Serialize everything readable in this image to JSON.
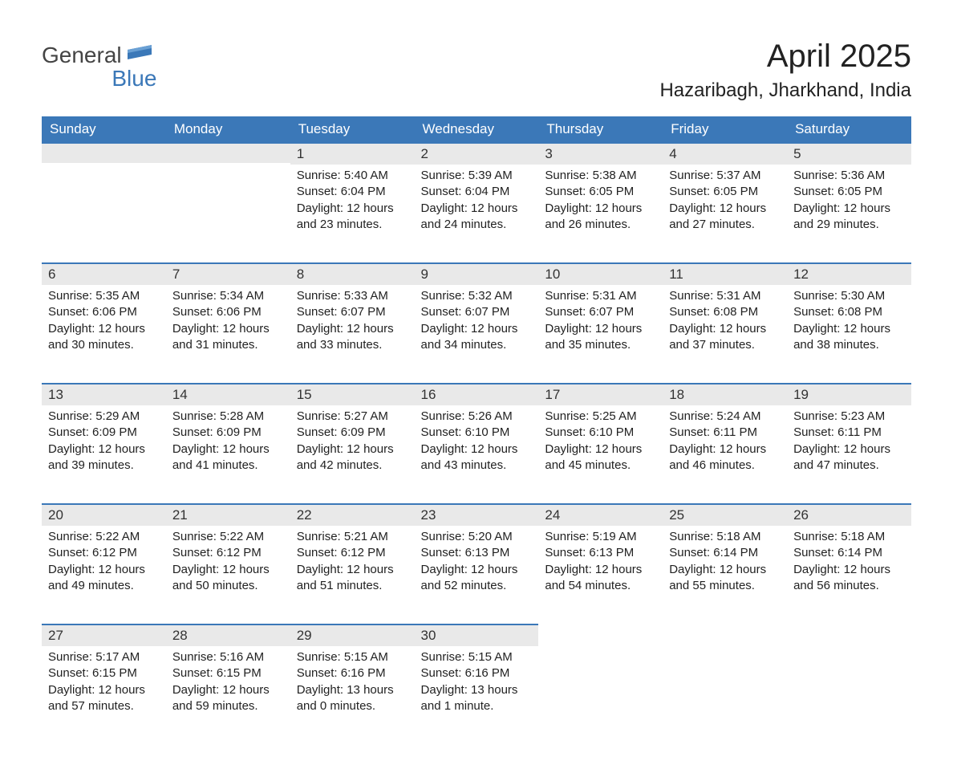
{
  "logo": {
    "line1": "General",
    "line2": "Blue",
    "color_general": "#444444",
    "color_blue": "#3b78b8",
    "flag_color": "#3b78b8"
  },
  "title": "April 2025",
  "location": "Hazaribagh, Jharkhand, India",
  "colors": {
    "header_bg": "#3b78b8",
    "header_text": "#ffffff",
    "day_bar_bg": "#e9e9e9",
    "row_divider": "#3b78b8",
    "body_text": "#222222",
    "background": "#ffffff"
  },
  "fonts": {
    "title_size": 40,
    "location_size": 24,
    "dayhead_size": 17,
    "daynum_size": 17,
    "body_size": 15
  },
  "day_headers": [
    "Sunday",
    "Monday",
    "Tuesday",
    "Wednesday",
    "Thursday",
    "Friday",
    "Saturday"
  ],
  "weeks": [
    [
      {
        "day": "",
        "sunrise": "",
        "sunset": "",
        "daylight": ""
      },
      {
        "day": "",
        "sunrise": "",
        "sunset": "",
        "daylight": ""
      },
      {
        "day": "1",
        "sunrise": "Sunrise: 5:40 AM",
        "sunset": "Sunset: 6:04 PM",
        "daylight": "Daylight: 12 hours and 23 minutes."
      },
      {
        "day": "2",
        "sunrise": "Sunrise: 5:39 AM",
        "sunset": "Sunset: 6:04 PM",
        "daylight": "Daylight: 12 hours and 24 minutes."
      },
      {
        "day": "3",
        "sunrise": "Sunrise: 5:38 AM",
        "sunset": "Sunset: 6:05 PM",
        "daylight": "Daylight: 12 hours and 26 minutes."
      },
      {
        "day": "4",
        "sunrise": "Sunrise: 5:37 AM",
        "sunset": "Sunset: 6:05 PM",
        "daylight": "Daylight: 12 hours and 27 minutes."
      },
      {
        "day": "5",
        "sunrise": "Sunrise: 5:36 AM",
        "sunset": "Sunset: 6:05 PM",
        "daylight": "Daylight: 12 hours and 29 minutes."
      }
    ],
    [
      {
        "day": "6",
        "sunrise": "Sunrise: 5:35 AM",
        "sunset": "Sunset: 6:06 PM",
        "daylight": "Daylight: 12 hours and 30 minutes."
      },
      {
        "day": "7",
        "sunrise": "Sunrise: 5:34 AM",
        "sunset": "Sunset: 6:06 PM",
        "daylight": "Daylight: 12 hours and 31 minutes."
      },
      {
        "day": "8",
        "sunrise": "Sunrise: 5:33 AM",
        "sunset": "Sunset: 6:07 PM",
        "daylight": "Daylight: 12 hours and 33 minutes."
      },
      {
        "day": "9",
        "sunrise": "Sunrise: 5:32 AM",
        "sunset": "Sunset: 6:07 PM",
        "daylight": "Daylight: 12 hours and 34 minutes."
      },
      {
        "day": "10",
        "sunrise": "Sunrise: 5:31 AM",
        "sunset": "Sunset: 6:07 PM",
        "daylight": "Daylight: 12 hours and 35 minutes."
      },
      {
        "day": "11",
        "sunrise": "Sunrise: 5:31 AM",
        "sunset": "Sunset: 6:08 PM",
        "daylight": "Daylight: 12 hours and 37 minutes."
      },
      {
        "day": "12",
        "sunrise": "Sunrise: 5:30 AM",
        "sunset": "Sunset: 6:08 PM",
        "daylight": "Daylight: 12 hours and 38 minutes."
      }
    ],
    [
      {
        "day": "13",
        "sunrise": "Sunrise: 5:29 AM",
        "sunset": "Sunset: 6:09 PM",
        "daylight": "Daylight: 12 hours and 39 minutes."
      },
      {
        "day": "14",
        "sunrise": "Sunrise: 5:28 AM",
        "sunset": "Sunset: 6:09 PM",
        "daylight": "Daylight: 12 hours and 41 minutes."
      },
      {
        "day": "15",
        "sunrise": "Sunrise: 5:27 AM",
        "sunset": "Sunset: 6:09 PM",
        "daylight": "Daylight: 12 hours and 42 minutes."
      },
      {
        "day": "16",
        "sunrise": "Sunrise: 5:26 AM",
        "sunset": "Sunset: 6:10 PM",
        "daylight": "Daylight: 12 hours and 43 minutes."
      },
      {
        "day": "17",
        "sunrise": "Sunrise: 5:25 AM",
        "sunset": "Sunset: 6:10 PM",
        "daylight": "Daylight: 12 hours and 45 minutes."
      },
      {
        "day": "18",
        "sunrise": "Sunrise: 5:24 AM",
        "sunset": "Sunset: 6:11 PM",
        "daylight": "Daylight: 12 hours and 46 minutes."
      },
      {
        "day": "19",
        "sunrise": "Sunrise: 5:23 AM",
        "sunset": "Sunset: 6:11 PM",
        "daylight": "Daylight: 12 hours and 47 minutes."
      }
    ],
    [
      {
        "day": "20",
        "sunrise": "Sunrise: 5:22 AM",
        "sunset": "Sunset: 6:12 PM",
        "daylight": "Daylight: 12 hours and 49 minutes."
      },
      {
        "day": "21",
        "sunrise": "Sunrise: 5:22 AM",
        "sunset": "Sunset: 6:12 PM",
        "daylight": "Daylight: 12 hours and 50 minutes."
      },
      {
        "day": "22",
        "sunrise": "Sunrise: 5:21 AM",
        "sunset": "Sunset: 6:12 PM",
        "daylight": "Daylight: 12 hours and 51 minutes."
      },
      {
        "day": "23",
        "sunrise": "Sunrise: 5:20 AM",
        "sunset": "Sunset: 6:13 PM",
        "daylight": "Daylight: 12 hours and 52 minutes."
      },
      {
        "day": "24",
        "sunrise": "Sunrise: 5:19 AM",
        "sunset": "Sunset: 6:13 PM",
        "daylight": "Daylight: 12 hours and 54 minutes."
      },
      {
        "day": "25",
        "sunrise": "Sunrise: 5:18 AM",
        "sunset": "Sunset: 6:14 PM",
        "daylight": "Daylight: 12 hours and 55 minutes."
      },
      {
        "day": "26",
        "sunrise": "Sunrise: 5:18 AM",
        "sunset": "Sunset: 6:14 PM",
        "daylight": "Daylight: 12 hours and 56 minutes."
      }
    ],
    [
      {
        "day": "27",
        "sunrise": "Sunrise: 5:17 AM",
        "sunset": "Sunset: 6:15 PM",
        "daylight": "Daylight: 12 hours and 57 minutes."
      },
      {
        "day": "28",
        "sunrise": "Sunrise: 5:16 AM",
        "sunset": "Sunset: 6:15 PM",
        "daylight": "Daylight: 12 hours and 59 minutes."
      },
      {
        "day": "29",
        "sunrise": "Sunrise: 5:15 AM",
        "sunset": "Sunset: 6:16 PM",
        "daylight": "Daylight: 13 hours and 0 minutes."
      },
      {
        "day": "30",
        "sunrise": "Sunrise: 5:15 AM",
        "sunset": "Sunset: 6:16 PM",
        "daylight": "Daylight: 13 hours and 1 minute."
      },
      {
        "day": "",
        "sunrise": "",
        "sunset": "",
        "daylight": ""
      },
      {
        "day": "",
        "sunrise": "",
        "sunset": "",
        "daylight": ""
      },
      {
        "day": "",
        "sunrise": "",
        "sunset": "",
        "daylight": ""
      }
    ]
  ]
}
